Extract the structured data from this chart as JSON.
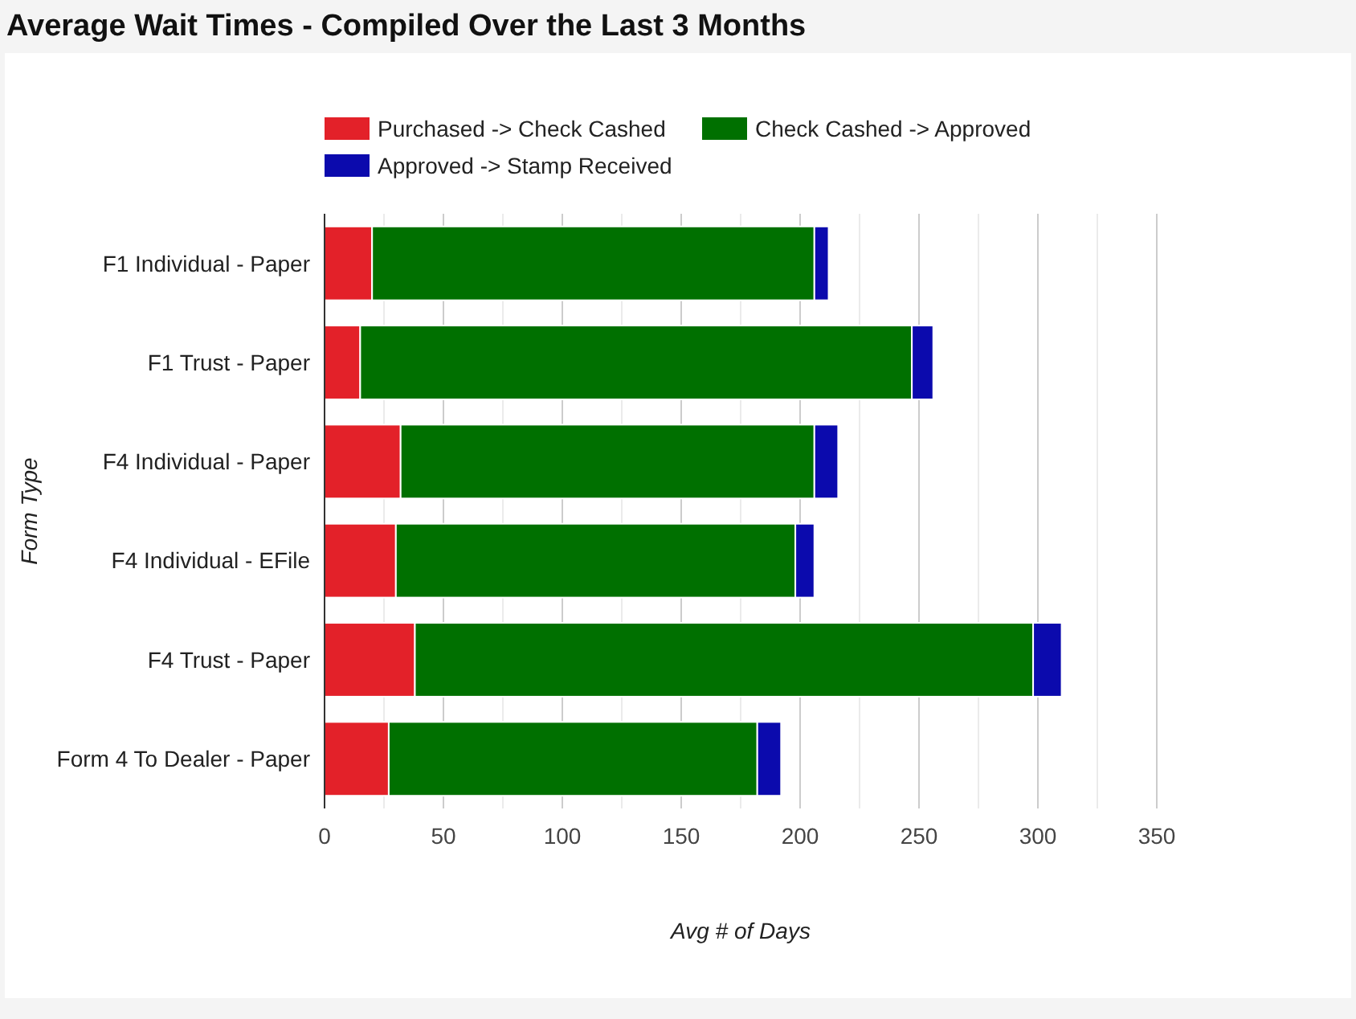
{
  "chart_data": {
    "type": "bar",
    "title": "Average Wait Times - Compiled Over the Last 3 Months",
    "orientation": "horizontal",
    "stacked": true,
    "categories": [
      "F1 Individual - Paper",
      "F1 Trust - Paper",
      "F4 Individual - Paper",
      "F4 Individual - EFile",
      "F4 Trust - Paper",
      "Form 4 To Dealer - Paper"
    ],
    "series": [
      {
        "name": "Purchased -> Check Cashed",
        "color": "#e32129",
        "values": [
          20,
          15,
          32,
          30,
          38,
          27
        ]
      },
      {
        "name": "Check Cashed -> Approved",
        "color": "#007000",
        "values": [
          186,
          232,
          174,
          168,
          260,
          155
        ]
      },
      {
        "name": "Approved -> Stamp Received",
        "color": "#0b0aad",
        "values": [
          6,
          9,
          10,
          8,
          12,
          10
        ]
      }
    ],
    "xlabel": "Avg # of Days",
    "ylabel": "Form Type",
    "xlim": [
      0,
      350
    ],
    "xticks": [
      0,
      {
        "value": 25,
        "label": null
      },
      50,
      {
        "value": 75,
        "label": null
      },
      100,
      {
        "value": 125,
        "label": null
      },
      150,
      {
        "value": 175,
        "label": null
      },
      200,
      {
        "value": 225,
        "label": null
      },
      250,
      {
        "value": 275,
        "label": null
      },
      300,
      {
        "value": 325,
        "label": null
      },
      350
    ],
    "grid": "x",
    "legend": "top"
  }
}
